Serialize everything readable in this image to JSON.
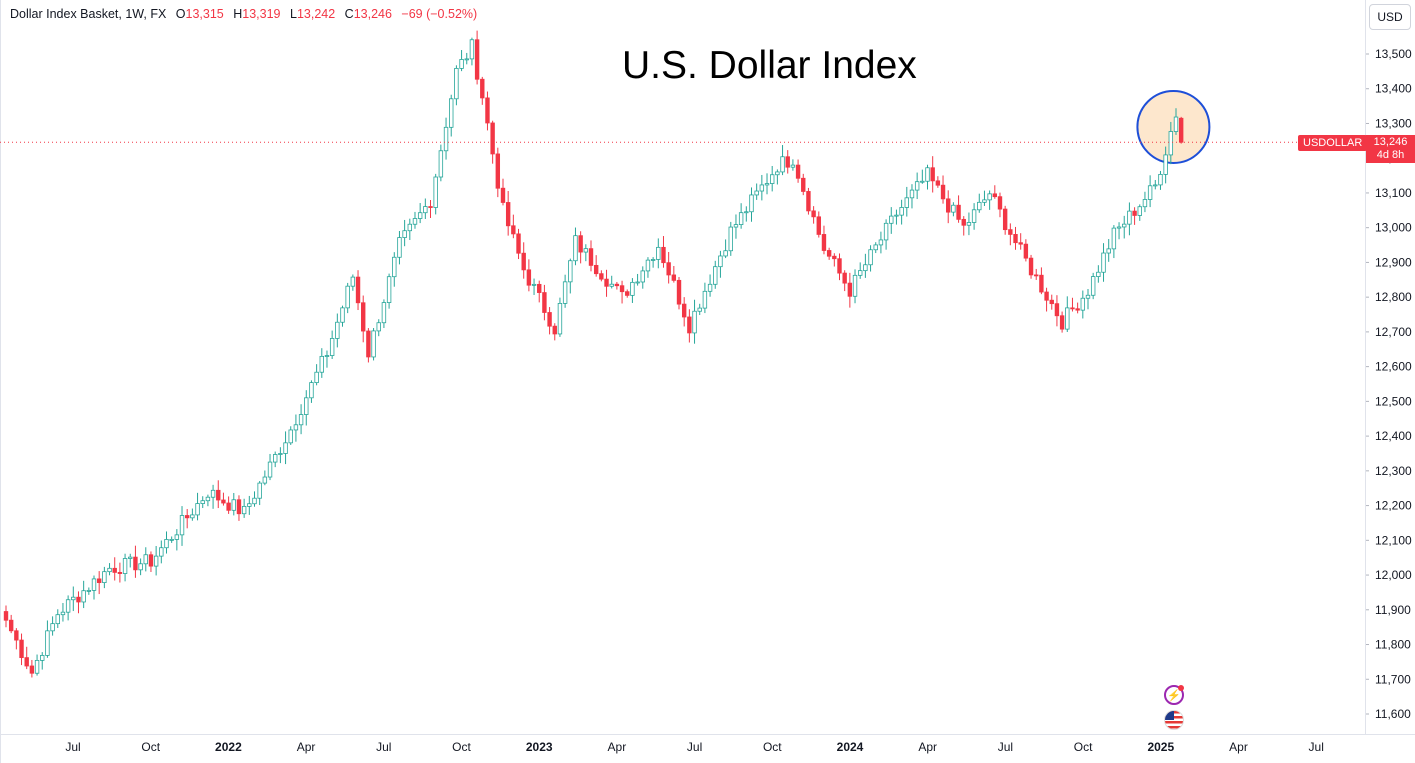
{
  "header": {
    "symbol": "Dollar Index Basket, 1W, FX",
    "o_label": "O",
    "o_value": "13,315",
    "h_label": "H",
    "h_value": "13,319",
    "l_label": "L",
    "l_value": "13,242",
    "c_label": "C",
    "c_value": "13,246",
    "change": "−69 (−0.52%)"
  },
  "currency": "USD",
  "price_tag": {
    "symbol": "USDOLLAR",
    "price": "13,246",
    "countdown": "4d 8h"
  },
  "colors": {
    "up": "#26a69a",
    "down": "#f23645",
    "grid": "#f0f3fa",
    "highlight_fill": "#fde3c4",
    "highlight_stroke": "#1e4fd8"
  },
  "badges": {
    "lightning": "lightning-icon",
    "flag": "us-flag-icon"
  },
  "chart_data": {
    "type": "candlestick",
    "title": "U.S. Dollar Index",
    "interval": "1W",
    "ylim": [
      11560,
      13560
    ],
    "y_ticks": [
      "13,500",
      "13,400",
      "13,300",
      "13,200",
      "13,100",
      "13,000",
      "12,900",
      "12,800",
      "12,700",
      "12,600",
      "12,500",
      "12,400",
      "12,300",
      "12,200",
      "12,100",
      "12,000",
      "11,900",
      "11,800",
      "11,700",
      "11,600"
    ],
    "x_labels": [
      "Jul",
      "Oct",
      "2022",
      "Apr",
      "Jul",
      "Oct",
      "2023",
      "Apr",
      "Jul",
      "Oct",
      "2024",
      "Apr",
      "Jul",
      "Oct",
      "2025",
      "Apr",
      "Jul"
    ],
    "x_label_bold": [
      "2022",
      "2023",
      "2024",
      "2025"
    ],
    "grid": false,
    "highlight": "circle around latest candles",
    "anchors": [
      [
        0,
        11870
      ],
      [
        5,
        11720
      ],
      [
        10,
        11890
      ],
      [
        20,
        12020
      ],
      [
        28,
        12040
      ],
      [
        39,
        12240
      ],
      [
        46,
        12180
      ],
      [
        55,
        12420
      ],
      [
        62,
        12640
      ],
      [
        67,
        12860
      ],
      [
        70,
        12640
      ],
      [
        76,
        12950
      ],
      [
        82,
        13080
      ],
      [
        87,
        13450
      ],
      [
        90,
        13520
      ],
      [
        92,
        13380
      ],
      [
        96,
        13050
      ],
      [
        100,
        12880
      ],
      [
        106,
        12710
      ],
      [
        110,
        12960
      ],
      [
        119,
        12800
      ],
      [
        126,
        12950
      ],
      [
        132,
        12720
      ],
      [
        140,
        12990
      ],
      [
        149,
        13180
      ],
      [
        152,
        13200
      ],
      [
        158,
        12940
      ],
      [
        163,
        12820
      ],
      [
        172,
        13040
      ],
      [
        178,
        13150
      ],
      [
        185,
        13000
      ],
      [
        190,
        13100
      ],
      [
        196,
        12930
      ],
      [
        204,
        12730
      ],
      [
        209,
        12820
      ],
      [
        214,
        12980
      ],
      [
        222,
        13120
      ],
      [
        226,
        13330
      ],
      [
        227,
        13310
      ]
    ],
    "last": {
      "open": 13315,
      "high": 13319,
      "low": 13242,
      "close": 13246
    }
  }
}
